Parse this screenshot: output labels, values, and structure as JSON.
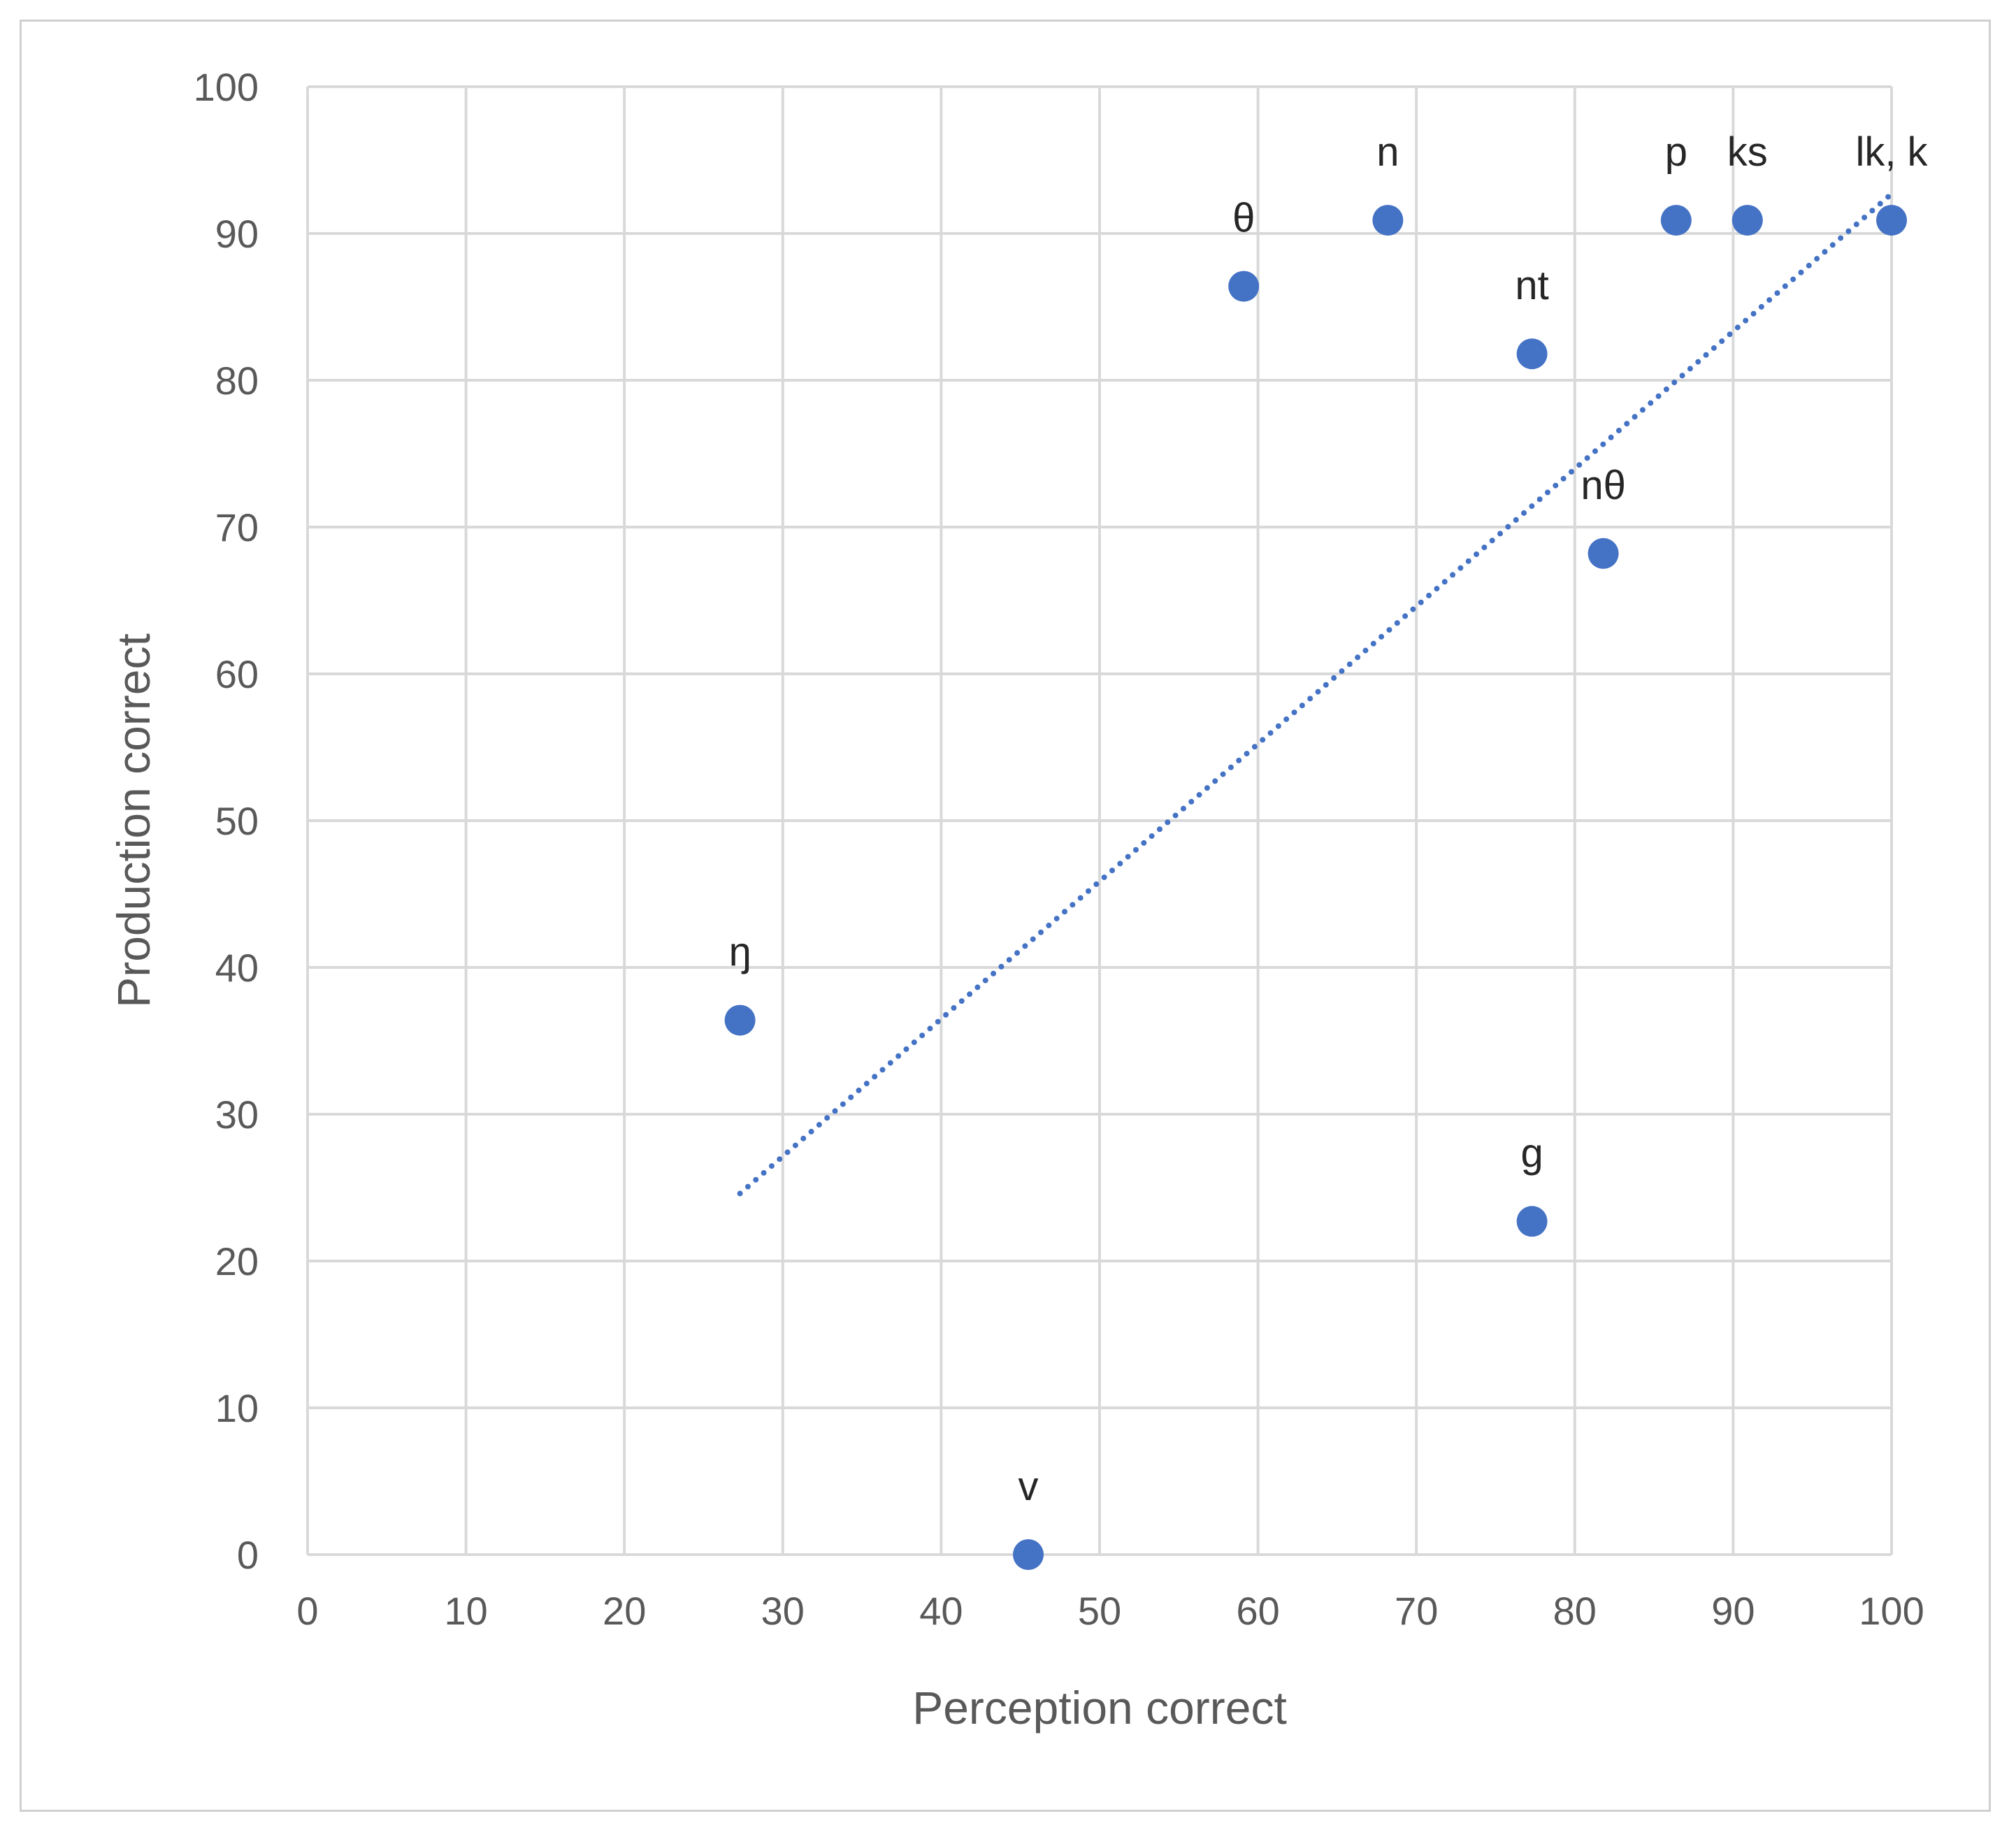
{
  "chart_data": {
    "type": "scatter",
    "title": "",
    "xlabel": "Perception correct",
    "ylabel": "Production correct",
    "xlim": [
      0,
      100
    ],
    "ylim": [
      0,
      100
    ],
    "x_ticks": [
      0,
      10,
      20,
      30,
      40,
      50,
      60,
      70,
      80,
      90,
      100
    ],
    "y_ticks": [
      0,
      10,
      20,
      30,
      40,
      50,
      60,
      70,
      80,
      90,
      100
    ],
    "grid": true,
    "legend": "none",
    "colors": {
      "marker": "#4472C4",
      "trendline": "#4472C4",
      "grid": "#d9d9d9",
      "text": "#595959"
    },
    "points": [
      {
        "label": "θ",
        "x": 59.1,
        "y": 86.4
      },
      {
        "label": "n",
        "x": 68.2,
        "y": 90.9
      },
      {
        "label": "p",
        "x": 86.4,
        "y": 90.9
      },
      {
        "label": "ks",
        "x": 90.9,
        "y": 90.9
      },
      {
        "label": "lk, k",
        "x": 100,
        "y": 90.9
      },
      {
        "label": "nt",
        "x": 77.3,
        "y": 81.8
      },
      {
        "label": "nθ",
        "x": 81.8,
        "y": 68.2
      },
      {
        "label": "ŋ",
        "x": 27.3,
        "y": 36.4
      },
      {
        "label": "g",
        "x": 77.3,
        "y": 22.7
      },
      {
        "label": "v",
        "x": 45.5,
        "y": 0
      }
    ],
    "trendline": {
      "type": "linear",
      "style": "dotted",
      "x_start": 27.3,
      "y_start": 24.6,
      "x_end": 100,
      "y_end": 92.7
    }
  }
}
